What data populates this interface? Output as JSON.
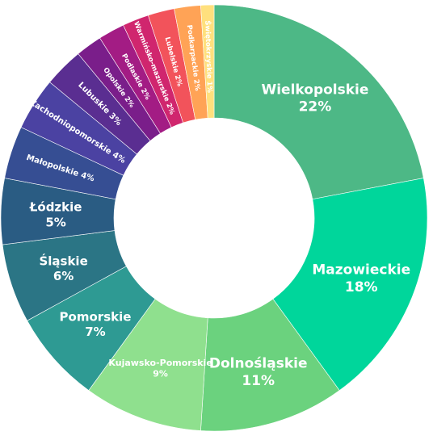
{
  "chart_data": {
    "type": "pie",
    "variant": "donut",
    "slices": [
      {
        "name": "Wielkopolskie",
        "value": 22,
        "label": "22%",
        "color": "#4DB886"
      },
      {
        "name": "Mazowieckie",
        "value": 18,
        "label": "18%",
        "color": "#00D69B"
      },
      {
        "name": "Dolnośląskie",
        "value": 11,
        "label": "11%",
        "color": "#6BD27E"
      },
      {
        "name": "Kujawsko-Pomorskie",
        "value": 9,
        "label": "9%",
        "color": "#8FE08E"
      },
      {
        "name": "Pomorskie",
        "value": 7,
        "label": "7%",
        "color": "#2E9A93"
      },
      {
        "name": "Śląskie",
        "value": 6,
        "label": "6%",
        "color": "#2B7585"
      },
      {
        "name": "Łódzkie",
        "value": 5,
        "label": "5%",
        "color": "#2A5C83"
      },
      {
        "name": "Małopolskie",
        "value": 4,
        "label": "4%",
        "color": "#364E93"
      },
      {
        "name": "Zachodniopomorskie",
        "value": 4,
        "label": "4%",
        "color": "#4B42A2"
      },
      {
        "name": "Lubuskie",
        "value": 3,
        "label": "3%",
        "color": "#5A2E91"
      },
      {
        "name": "Opolskie",
        "value": 2,
        "label": "2%",
        "color": "#7A1E8A"
      },
      {
        "name": "Podlaskie",
        "value": 2,
        "label": "2%",
        "color": "#A31C84"
      },
      {
        "name": "Warmińsko-mazurskie",
        "value": 2,
        "label": "2%",
        "color": "#D0266E"
      },
      {
        "name": "Lubelskie",
        "value": 2,
        "label": "2%",
        "color": "#F2535B"
      },
      {
        "name": "Podkarpackie",
        "value": 2,
        "label": "2%",
        "color": "#FFA356"
      },
      {
        "name": "Świętokrzyskie",
        "value": 1,
        "label": "1%",
        "color": "#FFE07D"
      }
    ]
  }
}
